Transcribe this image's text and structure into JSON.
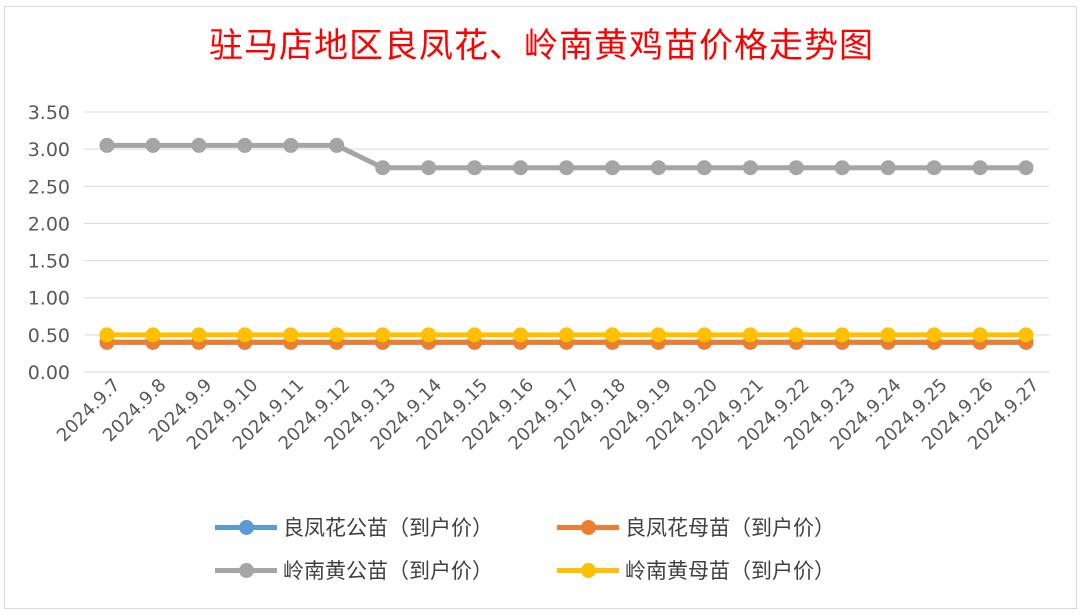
{
  "chart_data": {
    "type": "line",
    "title": "驻马店地区良凤花、岭南黄鸡苗价格走势图",
    "xlabel": "",
    "ylabel": "",
    "ylim": [
      0,
      3.5
    ],
    "yticks": [
      "0.00",
      "0.50",
      "1.00",
      "1.50",
      "2.00",
      "2.50",
      "3.00",
      "3.50"
    ],
    "grid": true,
    "legend_position": "bottom",
    "categories": [
      "2024.9.7",
      "2024.9.8",
      "2024.9.9",
      "2024.9.10",
      "2024.9.11",
      "2024.9.12",
      "2024.9.13",
      "2024.9.14",
      "2024.9.15",
      "2024.9.16",
      "2024.9.17",
      "2024.9.18",
      "2024.9.19",
      "2024.9.20",
      "2024.9.21",
      "2024.9.22",
      "2024.9.23",
      "2024.9.24",
      "2024.9.25",
      "2024.9.26",
      "2024.9.27"
    ],
    "series": [
      {
        "name": "良凤花公苗（到户价）",
        "color": "#5b9bd5",
        "values": [
          0.4,
          0.4,
          0.4,
          0.4,
          0.4,
          0.4,
          0.4,
          0.4,
          0.4,
          0.4,
          0.4,
          0.4,
          0.4,
          0.4,
          0.4,
          0.4,
          0.4,
          0.4,
          0.4,
          0.4,
          0.4
        ]
      },
      {
        "name": "良凤花母苗（到户价）",
        "color": "#ed7d31",
        "values": [
          0.4,
          0.4,
          0.4,
          0.4,
          0.4,
          0.4,
          0.4,
          0.4,
          0.4,
          0.4,
          0.4,
          0.4,
          0.4,
          0.4,
          0.4,
          0.4,
          0.4,
          0.4,
          0.4,
          0.4,
          0.4
        ]
      },
      {
        "name": "岭南黄公苗（到户价）",
        "color": "#a5a5a5",
        "values": [
          3.05,
          3.05,
          3.05,
          3.05,
          3.05,
          3.05,
          2.75,
          2.75,
          2.75,
          2.75,
          2.75,
          2.75,
          2.75,
          2.75,
          2.75,
          2.75,
          2.75,
          2.75,
          2.75,
          2.75,
          2.75
        ]
      },
      {
        "name": "岭南黄母苗（到户价）",
        "color": "#ffc000",
        "values": [
          0.5,
          0.5,
          0.5,
          0.5,
          0.5,
          0.5,
          0.5,
          0.5,
          0.5,
          0.5,
          0.5,
          0.5,
          0.5,
          0.5,
          0.5,
          0.5,
          0.5,
          0.5,
          0.5,
          0.5,
          0.5
        ]
      }
    ]
  }
}
